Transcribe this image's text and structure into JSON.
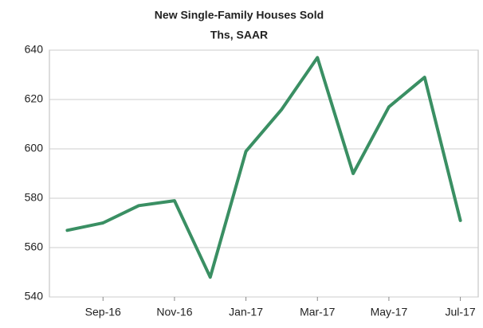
{
  "chart_data": {
    "type": "line",
    "title": "New Single-Family Houses Sold",
    "subtitle": "Ths, SAAR",
    "categories": [
      null,
      "Sep-16",
      null,
      "Nov-16",
      null,
      "Jan-17",
      null,
      "Mar-17",
      null,
      "May-17",
      null,
      "Jul-17"
    ],
    "series": [
      {
        "name": null,
        "color": "#3a8f63",
        "values": [
          567,
          570,
          577,
          579,
          548,
          599,
          616,
          637,
          590,
          617,
          629,
          571
        ]
      }
    ],
    "ylim": [
      540,
      640
    ],
    "yticks": [
      540,
      560,
      580,
      600,
      620,
      640
    ],
    "grid": true
  }
}
